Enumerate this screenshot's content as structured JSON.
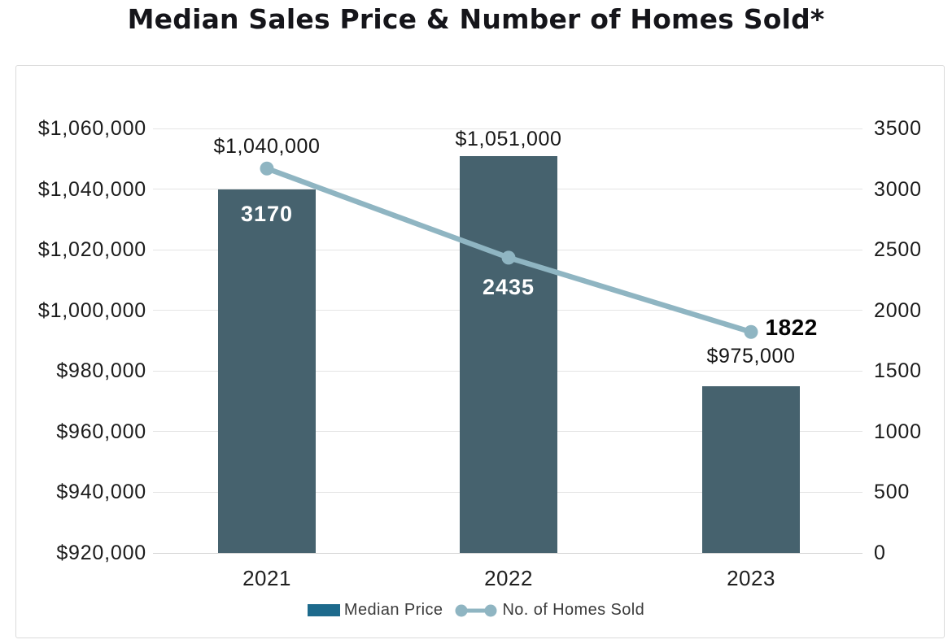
{
  "title": "Median Sales Price & Number of Homes Sold*",
  "chart_data": {
    "type": "combo-bar-line",
    "categories": [
      "2021",
      "2022",
      "2023"
    ],
    "series": [
      {
        "name": "Median Price",
        "type": "bar",
        "axis": "left",
        "values": [
          1040000,
          1051000,
          975000
        ],
        "data_labels": [
          "$1,040,000",
          "$1,051,000",
          "$975,000"
        ],
        "color": "#46626E"
      },
      {
        "name": "No. of Homes Sold",
        "type": "line",
        "axis": "right",
        "values": [
          3170,
          2435,
          1822
        ],
        "data_labels": [
          "3170",
          "2435",
          "1822"
        ],
        "color": "#8FB5C2"
      }
    ],
    "left_axis": {
      "min": 920000,
      "max": 1060000,
      "step": 20000,
      "tick_labels": [
        "$920,000",
        "$940,000",
        "$960,000",
        "$980,000",
        "$1,000,000",
        "$1,020,000",
        "$1,040,000",
        "$1,060,000"
      ]
    },
    "right_axis": {
      "min": 0,
      "max": 3500,
      "step": 500,
      "tick_labels": [
        "0",
        "500",
        "1000",
        "1500",
        "2000",
        "2500",
        "3000",
        "3500"
      ]
    },
    "grid": true,
    "legend_position": "bottom",
    "legend": [
      {
        "label": "Median Price",
        "swatch": "bar",
        "color": "#1D6A8C"
      },
      {
        "label": "No. of Homes Sold",
        "swatch": "line",
        "color": "#8FB5C2"
      }
    ]
  },
  "colors": {
    "bar": "#46626E",
    "line": "#8FB5C2",
    "legend_bar_swatch": "#1D6A8C",
    "grid": "#E4E4E4",
    "panel_border": "#DBDBDB"
  }
}
